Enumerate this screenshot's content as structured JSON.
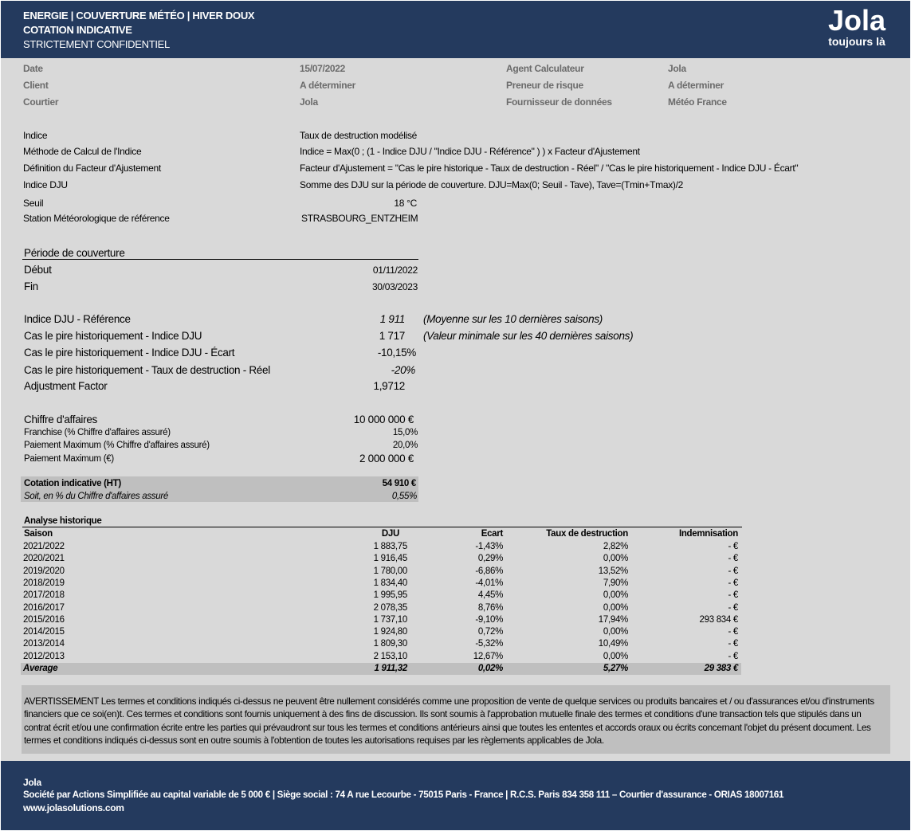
{
  "header": {
    "title_line1": "ENERGIE |  COUVERTURE MÉTÉO | HIVER DOUX",
    "title_line2": "COTATION INDICATIVE",
    "title_line3": "STRICTEMENT CONFIDENTIEL",
    "logo_word": "Jola",
    "logo_tagline": "toujours là"
  },
  "colors": {
    "header_bg": "#243a5e",
    "page_bg": "#d9d9d9",
    "shade": "#bfbfbf"
  },
  "info": [
    {
      "label": "Date",
      "value": "15/07/2022",
      "label2": "Agent Calculateur",
      "value2": "Jola"
    },
    {
      "label": "Client",
      "value": "A déterminer",
      "label2": "Preneur de risque",
      "value2": "A déterminer"
    },
    {
      "label": "Courtier",
      "value": "Jola",
      "label2": "Fournisseur de données",
      "value2": "Météo France"
    }
  ],
  "index": [
    {
      "label": "Indice",
      "value": "Taux de destruction modélisé"
    },
    {
      "label": "Méthode de Calcul de l'Indice",
      "value": "Indice = Max(0 ; (1 - Indice DJU / \"Indice DJU - Référence\" ) ) x Facteur d'Ajustement"
    },
    {
      "label": "Définition du Facteur d'Ajustement",
      "value": "Facteur d'Ajustement = \"Cas le pire historique - Taux de destruction - Réel\" / \"Cas le pire historiquement - Indice DJU - Écart\""
    },
    {
      "label": "Indice DJU",
      "value": "Somme des DJU sur la période de couverture. DJU=Max(0; Seuil - Tave), Tave=(Tmin+Tmax)/2"
    },
    {
      "label": "Seuil",
      "value": "18 °C"
    },
    {
      "label": "Station Météorologique de référence",
      "value": "STRASBOURG_ENTZHEIM"
    }
  ],
  "period": {
    "title": "Période de couverture",
    "start_label": "Début",
    "start": "01/11/2022",
    "end_label": "Fin",
    "end": "30/03/2023"
  },
  "dju": [
    {
      "label": "Indice DJU - Référence",
      "value": "1 911",
      "note": "(Moyenne sur les 10 dernières saisons)",
      "italic": true
    },
    {
      "label": "Cas le pire historiquement - Indice DJU",
      "value": "1 717",
      "note": "(Valeur minimale sur les 40 dernières saisons)",
      "italic": false
    },
    {
      "label": "Cas le pire historiquement - Indice DJU - Écart",
      "value": "-10,15%",
      "note": "",
      "italic": false
    },
    {
      "label": "Cas le pire historiquement - Taux de destruction - Réel",
      "value": "-20%",
      "note": "",
      "italic": true
    },
    {
      "label": "Adjustment Factor",
      "value": "1,9712",
      "note": "",
      "italic": false
    }
  ],
  "financials": [
    {
      "label": "Chiffre d'affaires",
      "value": "10 000 000 €"
    },
    {
      "label": "Franchise (% Chiffre d'affaires assuré)",
      "value": "15,0%"
    },
    {
      "label": "Paiement Maximum (% Chiffre d'affaires assuré)",
      "value": "20,0%"
    },
    {
      "label": "Paiement Maximum (€)",
      "value": "2 000 000 €"
    }
  ],
  "quote": {
    "label": "Cotation indicative (HT)",
    "value": "54 910 €",
    "pct_label": "Soit, en % du Chiffre d'affaires assuré",
    "pct_value": "0,55%"
  },
  "history": {
    "title": "Analyse historique",
    "columns": [
      "Saison",
      "DJU",
      "Ecart",
      "Taux de destruction",
      "Indemnisation"
    ],
    "rows": [
      [
        "2021/2022",
        "1 883,75",
        "-1,43%",
        "2,82%",
        "-   €"
      ],
      [
        "2020/2021",
        "1 916,45",
        "0,29%",
        "0,00%",
        "-   €"
      ],
      [
        "2019/2020",
        "1 780,00",
        "-6,86%",
        "13,52%",
        "-   €"
      ],
      [
        "2018/2019",
        "1 834,40",
        "-4,01%",
        "7,90%",
        "-   €"
      ],
      [
        "2017/2018",
        "1 995,95",
        "4,45%",
        "0,00%",
        "-   €"
      ],
      [
        "2016/2017",
        "2 078,35",
        "8,76%",
        "0,00%",
        "-   €"
      ],
      [
        "2015/2016",
        "1 737,10",
        "-9,10%",
        "17,94%",
        "293 834 €"
      ],
      [
        "2014/2015",
        "1 924,80",
        "0,72%",
        "0,00%",
        "-   €"
      ],
      [
        "2013/2014",
        "1 809,30",
        "-5,32%",
        "10,49%",
        "-   €"
      ],
      [
        "2012/2013",
        "2 153,10",
        "12,67%",
        "0,00%",
        "-   €"
      ]
    ],
    "average": [
      "Average",
      "1 911,32",
      "0,02%",
      "5,27%",
      "29 383 €"
    ]
  },
  "disclaimer": "AVERTISSEMENT Les termes et conditions indiqués ci-dessus ne peuvent être nullement considérés comme une proposition de vente de quelque services ou produits bancaires et / ou d'assurances et/ou d'instruments financiers que ce soi(en)t. Ces termes et conditions sont fournis uniquement à des fins de discussion. Ils sont soumis à l'approbation mutuelle finale des termes et conditions d'une transaction tels que stipulés dans un contrat écrit et/ou une confirmation écrite entre les parties qui prévaudront sur tous les termes et conditions antérieurs ainsi que toutes les ententes et accords oraux ou écrits concernant l'objet du présent document. Les termes et conditions indiqués ci-dessus sont en outre soumis à l'obtention de toutes les autorisations requises par les règlements applicables de Jola.",
  "footer": {
    "company": "Jola",
    "legal": "Société par Actions Simplifiée au capital variable de 5 000 € | Siège social : 74 A rue Lecourbe - 75015 Paris - France | R.C.S. Paris 834 358 111 – Courtier d'assurance - ORIAS 18007161",
    "website": "www.jolasolutions.com"
  }
}
